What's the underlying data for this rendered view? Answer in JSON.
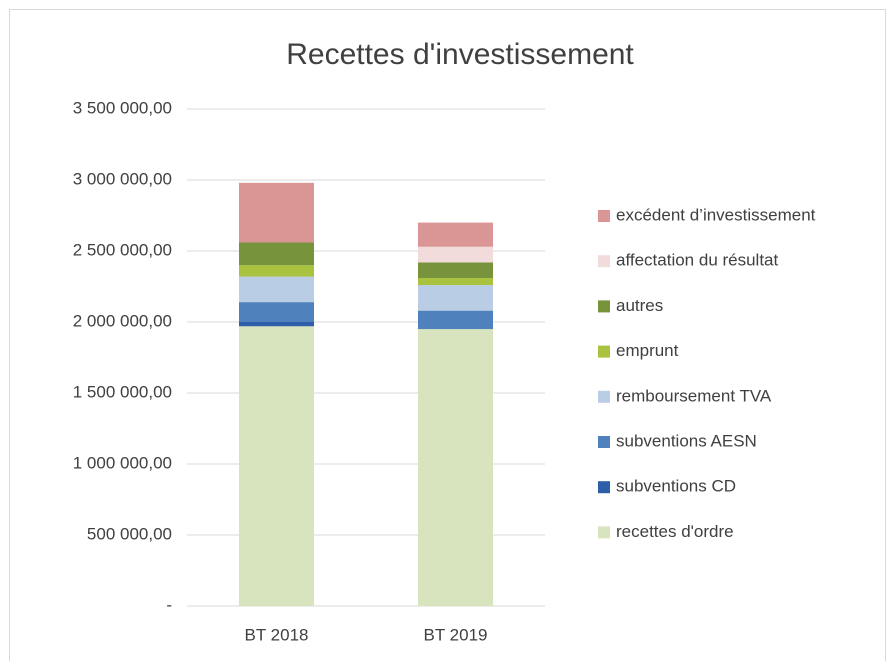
{
  "chart_data": {
    "type": "stacked_bar",
    "title": "Recettes d'investissement",
    "categories": [
      "BT 2018",
      "BT 2019"
    ],
    "series": [
      {
        "name": "recettes d'ordre",
        "color": "#d7e4bd",
        "values": [
          1970000,
          1950000
        ]
      },
      {
        "name": "subventions CD",
        "color": "#2e5ea8",
        "values": [
          30000,
          0
        ]
      },
      {
        "name": "subventions AESN",
        "color": "#4f81bd",
        "values": [
          140000,
          130000
        ]
      },
      {
        "name": "remboursement TVA",
        "color": "#b9cde5",
        "values": [
          180000,
          180000
        ]
      },
      {
        "name": "emprunt",
        "color": "#a9c23f",
        "values": [
          80000,
          50000
        ]
      },
      {
        "name": "autres",
        "color": "#77933c",
        "values": [
          160000,
          110000
        ]
      },
      {
        "name": "affectation du résultat",
        "color": "#f2dcdb",
        "values": [
          0,
          110000
        ]
      },
      {
        "name": "excédent d’investissement",
        "color": "#d99694",
        "values": [
          420000,
          170000
        ]
      }
    ],
    "ylim": [
      0,
      3500000
    ],
    "yticks": [
      {
        "value": 0,
        "label": "-"
      },
      {
        "value": 500000,
        "label": "500 000,00"
      },
      {
        "value": 1000000,
        "label": "1 000 000,00"
      },
      {
        "value": 1500000,
        "label": "1 500 000,00"
      },
      {
        "value": 2000000,
        "label": "2 000 000,00"
      },
      {
        "value": 2500000,
        "label": "2 500 000,00"
      },
      {
        "value": 3000000,
        "label": "3 000 000,00"
      },
      {
        "value": 3500000,
        "label": "3 500 000,00"
      }
    ],
    "grid": true,
    "legend": "right"
  }
}
